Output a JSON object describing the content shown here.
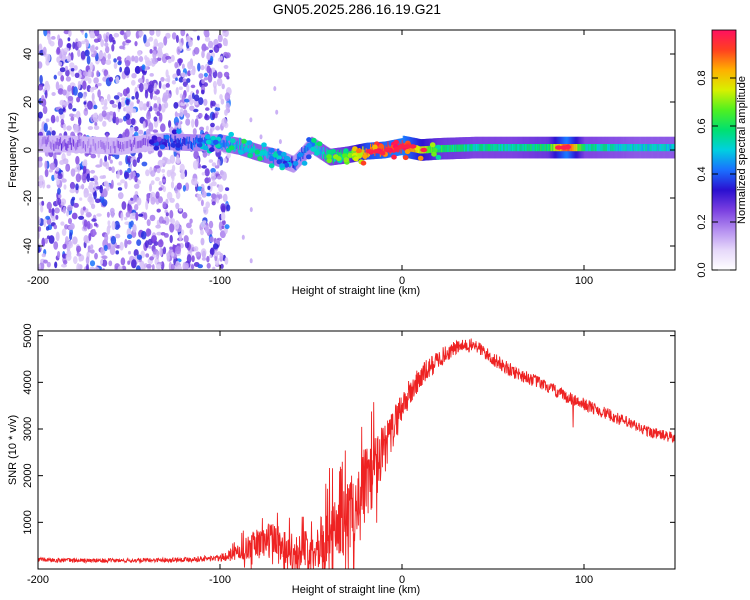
{
  "title": "GN05.2025.286.16.19.G21",
  "colors": {
    "background": "#ffffff",
    "axis": "#000000",
    "snr_line": "#ee2222",
    "spectro_faint": "#d4c0f2",
    "spectro_mid": "#7a3fe0",
    "spectro_strong": "#3312c8"
  },
  "chart_data": [
    {
      "type": "heatmap",
      "name": "spectrogram",
      "xlabel": "Height of straight line (km)",
      "ylabel": "Frequency (Hz)",
      "xlim": [
        -200,
        150
      ],
      "ylim": [
        -50,
        50
      ],
      "xticks": [
        -200,
        -100,
        0,
        100
      ],
      "yticks": [
        -40,
        -20,
        0,
        20,
        40
      ],
      "xtick_labels": [
        "-200",
        "-100",
        "0",
        "100"
      ],
      "ytick_labels": [
        "-40",
        "-20",
        "0",
        "20",
        "40"
      ],
      "colorbar": {
        "label": "Normalized spectral amplitude",
        "range": [
          0,
          1
        ],
        "ticks": [
          0.0,
          0.2,
          0.4,
          0.6,
          0.8
        ],
        "tick_labels": [
          "0.0",
          "0.2",
          "0.4",
          "0.6",
          "0.8"
        ],
        "colormap": [
          "#ffffff",
          "#e6d8fa",
          "#b48ef0",
          "#7a3fe0",
          "#2a10d0",
          "#1a70ff",
          "#00d0e0",
          "#00e070",
          "#50f020",
          "#d8f000",
          "#ffb000",
          "#ff4020",
          "#ff1060"
        ]
      },
      "ridge": {
        "description_points": [
          {
            "x": -200,
            "y": 2.5,
            "amp": 0.15
          },
          {
            "x": -185,
            "y": 2.5,
            "amp": 0.25
          },
          {
            "x": -170,
            "y": 2.0,
            "amp": 0.15
          },
          {
            "x": -155,
            "y": 1.5,
            "amp": 0.2
          },
          {
            "x": -140,
            "y": 3.0,
            "amp": 0.2
          },
          {
            "x": -130,
            "y": 3.5,
            "amp": 0.35
          },
          {
            "x": -115,
            "y": 3.0,
            "amp": 0.4
          },
          {
            "x": -100,
            "y": 3.0,
            "amp": 0.4
          },
          {
            "x": -90,
            "y": 1.5,
            "amp": 0.5
          },
          {
            "x": -80,
            "y": -1.0,
            "amp": 0.5
          },
          {
            "x": -70,
            "y": -3.0,
            "amp": 0.45
          },
          {
            "x": -60,
            "y": -6.0,
            "amp": 0.35
          },
          {
            "x": -50,
            "y": 2.0,
            "amp": 0.45
          },
          {
            "x": -40,
            "y": -3.0,
            "amp": 0.55
          },
          {
            "x": -30,
            "y": -2.0,
            "amp": 0.6
          },
          {
            "x": -20,
            "y": -0.5,
            "amp": 0.85
          },
          {
            "x": -10,
            "y": 0.0,
            "amp": 0.9
          },
          {
            "x": 0,
            "y": 1.5,
            "amp": 0.95
          },
          {
            "x": 10,
            "y": 0.0,
            "amp": 0.75
          },
          {
            "x": 20,
            "y": 0.5,
            "amp": 0.6
          },
          {
            "x": 40,
            "y": 1.0,
            "amp": 0.55
          },
          {
            "x": 60,
            "y": 1.0,
            "amp": 0.55
          },
          {
            "x": 80,
            "y": 1.0,
            "amp": 0.6
          },
          {
            "x": 90,
            "y": 1.0,
            "amp": 0.95
          },
          {
            "x": 100,
            "y": 1.0,
            "amp": 0.55
          },
          {
            "x": 130,
            "y": 1.0,
            "amp": 0.5
          },
          {
            "x": 150,
            "y": 1.0,
            "amp": 0.5
          }
        ]
      },
      "noise_region": {
        "x_from": -200,
        "x_to": -95,
        "y_from": -50,
        "y_to": 50
      }
    },
    {
      "type": "line",
      "name": "snr",
      "xlabel": "Height of straight line (km)",
      "ylabel": "SNR (10 * v/v)",
      "xlim": [
        -200,
        150
      ],
      "ylim": [
        0,
        5100
      ],
      "xticks": [
        -200,
        -100,
        0,
        100
      ],
      "yticks": [
        1000,
        2000,
        3000,
        4000,
        5000
      ],
      "xtick_labels": [
        "-200",
        "-100",
        "0",
        "100"
      ],
      "ytick_labels": [
        "1000",
        "2000",
        "3000",
        "4000",
        "5000"
      ],
      "series": [
        {
          "name": "SNR",
          "envelope": [
            {
              "x": -200,
              "y": 200,
              "noise": 80
            },
            {
              "x": -175,
              "y": 180,
              "noise": 80
            },
            {
              "x": -150,
              "y": 180,
              "noise": 70
            },
            {
              "x": -125,
              "y": 200,
              "noise": 80
            },
            {
              "x": -100,
              "y": 230,
              "noise": 120
            },
            {
              "x": -90,
              "y": 350,
              "noise": 250
            },
            {
              "x": -80,
              "y": 550,
              "noise": 450
            },
            {
              "x": -70,
              "y": 650,
              "noise": 600
            },
            {
              "x": -60,
              "y": 350,
              "noise": 500
            },
            {
              "x": -50,
              "y": 450,
              "noise": 600
            },
            {
              "x": -40,
              "y": 750,
              "noise": 900
            },
            {
              "x": -30,
              "y": 1100,
              "noise": 1100
            },
            {
              "x": -20,
              "y": 1800,
              "noise": 1200
            },
            {
              "x": -10,
              "y": 2500,
              "noise": 900
            },
            {
              "x": 0,
              "y": 3500,
              "noise": 600
            },
            {
              "x": 10,
              "y": 4100,
              "noise": 450
            },
            {
              "x": 20,
              "y": 4500,
              "noise": 350
            },
            {
              "x": 30,
              "y": 4750,
              "noise": 250
            },
            {
              "x": 40,
              "y": 4800,
              "noise": 250
            },
            {
              "x": 50,
              "y": 4500,
              "noise": 250
            },
            {
              "x": 60,
              "y": 4250,
              "noise": 250
            },
            {
              "x": 75,
              "y": 4000,
              "noise": 220
            },
            {
              "x": 90,
              "y": 3700,
              "noise": 220
            },
            {
              "x": 105,
              "y": 3450,
              "noise": 220
            },
            {
              "x": 120,
              "y": 3200,
              "noise": 220
            },
            {
              "x": 135,
              "y": 2950,
              "noise": 200
            },
            {
              "x": 150,
              "y": 2800,
              "noise": 200
            }
          ]
        }
      ]
    }
  ]
}
